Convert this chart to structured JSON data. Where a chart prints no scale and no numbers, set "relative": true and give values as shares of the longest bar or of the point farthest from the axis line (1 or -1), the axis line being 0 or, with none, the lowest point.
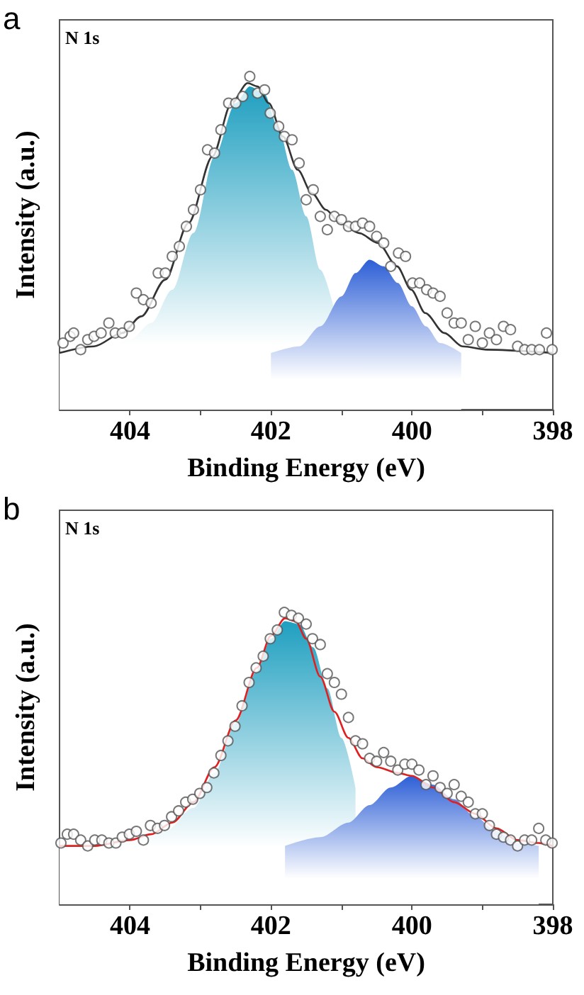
{
  "chart_data": [
    {
      "type": "scatter",
      "title": "a",
      "annotations": [
        "N 1s"
      ],
      "xlabel": "Binding Energy (eV)",
      "ylabel": "Intensity (a.u.)",
      "relative": true,
      "grid": false,
      "xlim": [
        405,
        398
      ],
      "xticks": [
        404,
        {
          "value": 403,
          "label": null
        },
        402,
        {
          "value": 401,
          "label": null
        },
        400,
        {
          "value": 399,
          "label": null
        },
        398
      ],
      "series": [
        {
          "type": "area",
          "color": "#1f9fc0",
          "x": [
            405,
            404.5,
            404,
            403.7,
            403.4,
            403.1,
            402.8,
            402.5,
            402.3,
            402.1,
            401.9,
            401.7,
            401.5,
            401.3,
            401.1
          ],
          "values": [
            0.17,
            0.18,
            0.21,
            0.26,
            0.36,
            0.53,
            0.76,
            0.92,
            0.97,
            0.95,
            0.85,
            0.72,
            0.58,
            0.42,
            0.3
          ]
        },
        {
          "type": "area",
          "color": "#2d5fd6",
          "x": [
            402.0,
            401.6,
            401.3,
            401.0,
            400.8,
            400.6,
            400.4,
            400.2,
            400.0,
            399.8,
            399.6,
            399.3
          ],
          "values": [
            0.17,
            0.19,
            0.25,
            0.34,
            0.41,
            0.45,
            0.43,
            0.38,
            0.31,
            0.25,
            0.2,
            0.17
          ]
        },
        {
          "type": "line",
          "color": "#333333",
          "line_style": "solid",
          "x": [
            405,
            404.51,
            404.11,
            403.84,
            403.5,
            403.17,
            402.83,
            402.56,
            402.33,
            402.19,
            402.03,
            401.83,
            401.62,
            401.42,
            401.22,
            401.02,
            400.75,
            400.48,
            400.21,
            400.01,
            399.81,
            399.54,
            399.28,
            398.94,
            398
          ],
          "values": [
            0.17,
            0.19,
            0.23,
            0.28,
            0.39,
            0.56,
            0.76,
            0.92,
            0.98,
            0.97,
            0.92,
            0.82,
            0.72,
            0.65,
            0.6,
            0.56,
            0.53,
            0.5,
            0.43,
            0.36,
            0.29,
            0.23,
            0.19,
            0.18,
            0.17
          ]
        },
        {
          "marker": "circle",
          "color": "#555555",
          "x": [
            404.95,
            404.85,
            404.8,
            404.7,
            404.6,
            404.51,
            404.41,
            404.3,
            404.21,
            404.11,
            404.01,
            403.91,
            403.81,
            403.7,
            403.6,
            403.5,
            403.4,
            403.3,
            403.2,
            403.1,
            403.0,
            402.9,
            402.8,
            402.71,
            402.6,
            402.5,
            402.4,
            402.3,
            402.19,
            402.09,
            402.01,
            401.89,
            401.81,
            401.7,
            401.6,
            401.5,
            401.4,
            401.3,
            401.2,
            401.1,
            401.0,
            400.9,
            400.8,
            400.7,
            400.6,
            400.5,
            400.4,
            400.3,
            400.19,
            400.09,
            399.99,
            399.89,
            399.79,
            399.7,
            399.6,
            399.5,
            399.4,
            399.3,
            399.2,
            399.1,
            399.0,
            398.9,
            398.8,
            398.7,
            398.6,
            398.5,
            398.4,
            398.3,
            398.19,
            398.09,
            398.01
          ],
          "values": [
            0.2,
            0.22,
            0.23,
            0.18,
            0.21,
            0.22,
            0.23,
            0.26,
            0.23,
            0.23,
            0.25,
            0.35,
            0.33,
            0.32,
            0.41,
            0.41,
            0.46,
            0.49,
            0.55,
            0.6,
            0.66,
            0.78,
            0.77,
            0.84,
            0.92,
            0.92,
            0.94,
            1.0,
            0.95,
            0.96,
            0.89,
            0.85,
            0.82,
            0.81,
            0.74,
            0.63,
            0.66,
            0.58,
            0.54,
            0.58,
            0.57,
            0.55,
            0.55,
            0.56,
            0.55,
            0.52,
            0.5,
            0.43,
            0.47,
            0.46,
            0.38,
            0.38,
            0.36,
            0.35,
            0.34,
            0.29,
            0.26,
            0.26,
            0.21,
            0.25,
            0.2,
            0.23,
            0.21,
            0.25,
            0.24,
            0.19,
            0.18,
            0.18,
            0.18,
            0.23,
            0.18
          ]
        }
      ]
    },
    {
      "type": "scatter",
      "title": "b",
      "annotations": [
        "N 1s"
      ],
      "xlabel": "Binding Energy (eV)",
      "ylabel": "Intensity (a.u.)",
      "relative": true,
      "grid": false,
      "xlim": [
        405,
        398
      ],
      "xticks": [
        404,
        {
          "value": 403,
          "label": null
        },
        402,
        {
          "value": 401,
          "label": null
        },
        400,
        {
          "value": 399,
          "label": null
        },
        398
      ],
      "series": [
        {
          "type": "area",
          "color": "#1f9fc0",
          "x": [
            405,
            404,
            403.5,
            403.1,
            402.8,
            402.5,
            402.2,
            402.0,
            401.8,
            401.6,
            401.4,
            401.2,
            401.0,
            400.8
          ],
          "values": [
            0.2,
            0.21,
            0.25,
            0.33,
            0.45,
            0.62,
            0.8,
            0.91,
            0.97,
            0.96,
            0.88,
            0.74,
            0.57,
            0.4
          ]
        },
        {
          "type": "area",
          "color": "#2d5fd6",
          "x": [
            401.8,
            401.3,
            400.9,
            400.6,
            400.3,
            400.0,
            399.7,
            399.4,
            399.1,
            398.8,
            398.5,
            398.2
          ],
          "values": [
            0.2,
            0.23,
            0.28,
            0.34,
            0.4,
            0.44,
            0.41,
            0.36,
            0.3,
            0.25,
            0.21,
            0.2
          ]
        },
        {
          "type": "line",
          "color": "#e02020",
          "line_style": "solid",
          "x": [
            405,
            404.5,
            404,
            403.7,
            403.4,
            403.1,
            402.8,
            402.5,
            402.2,
            402.0,
            401.8,
            401.65,
            401.5,
            401.3,
            401.1,
            400.9,
            400.7,
            400.5,
            400.2,
            400.0,
            399.7,
            399.4,
            399.1,
            398.8,
            398.5,
            398.2,
            398
          ],
          "values": [
            0.2,
            0.2,
            0.22,
            0.24,
            0.28,
            0.35,
            0.47,
            0.63,
            0.81,
            0.92,
            0.98,
            0.97,
            0.91,
            0.78,
            0.66,
            0.57,
            0.5,
            0.47,
            0.45,
            0.44,
            0.4,
            0.35,
            0.31,
            0.26,
            0.22,
            0.21,
            0.2
          ]
        },
        {
          "marker": "circle",
          "color": "#555555",
          "x": [
            404.98,
            404.89,
            404.8,
            404.7,
            404.6,
            404.5,
            404.4,
            404.3,
            404.2,
            404.11,
            404.01,
            403.91,
            403.81,
            403.71,
            403.61,
            403.51,
            403.41,
            403.31,
            403.21,
            403.11,
            403.01,
            402.91,
            402.81,
            402.71,
            402.61,
            402.51,
            402.41,
            402.31,
            402.21,
            402.11,
            402.01,
            401.91,
            401.81,
            401.71,
            401.61,
            401.5,
            401.41,
            401.3,
            401.2,
            401.1,
            401.0,
            400.9,
            400.8,
            400.7,
            400.6,
            400.5,
            400.4,
            400.3,
            400.2,
            400.1,
            400.0,
            399.9,
            399.8,
            399.7,
            399.6,
            399.5,
            399.4,
            399.3,
            399.2,
            399.1,
            399.0,
            398.9,
            398.8,
            398.7,
            398.6,
            398.5,
            398.4,
            398.3,
            398.2,
            398.1,
            398.01
          ],
          "values": [
            0.21,
            0.24,
            0.24,
            0.22,
            0.2,
            0.22,
            0.22,
            0.21,
            0.21,
            0.23,
            0.24,
            0.25,
            0.22,
            0.27,
            0.26,
            0.27,
            0.3,
            0.32,
            0.35,
            0.36,
            0.38,
            0.4,
            0.45,
            0.51,
            0.56,
            0.61,
            0.68,
            0.76,
            0.81,
            0.85,
            0.91,
            0.94,
            1.0,
            0.99,
            0.98,
            0.96,
            0.91,
            0.89,
            0.79,
            0.76,
            0.72,
            0.64,
            0.56,
            0.55,
            0.5,
            0.49,
            0.52,
            0.49,
            0.46,
            0.48,
            0.48,
            0.46,
            0.41,
            0.44,
            0.4,
            0.38,
            0.41,
            0.37,
            0.35,
            0.31,
            0.31,
            0.27,
            0.24,
            0.23,
            0.22,
            0.2,
            0.22,
            0.22,
            0.26,
            0.22,
            0.21
          ]
        }
      ]
    }
  ]
}
